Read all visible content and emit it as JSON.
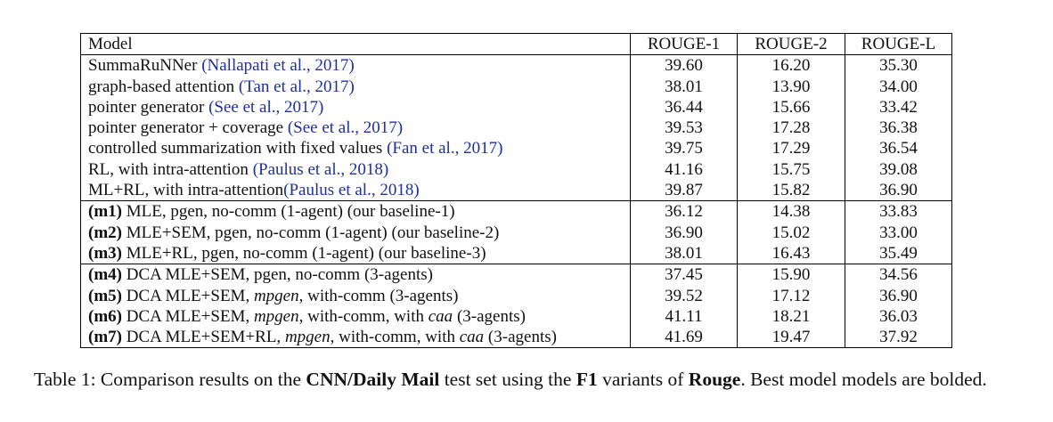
{
  "table": {
    "headers": [
      "Model",
      "ROUGE-1",
      "ROUGE-2",
      "ROUGE-L"
    ],
    "groups": [
      [
        {
          "segments": [
            {
              "text": "SummaRuNNer "
            },
            {
              "text": "(Nallapati et al., 2017)",
              "cite": true
            }
          ],
          "values": [
            "39.60",
            "16.20",
            "35.30"
          ],
          "bold": []
        },
        {
          "segments": [
            {
              "text": "graph-based attention "
            },
            {
              "text": "(Tan et al., 2017)",
              "cite": true
            }
          ],
          "values": [
            "38.01",
            "13.90",
            "34.00"
          ],
          "bold": []
        },
        {
          "segments": [
            {
              "text": "pointer generator "
            },
            {
              "text": "(See et al., 2017)",
              "cite": true
            }
          ],
          "values": [
            "36.44",
            "15.66",
            "33.42"
          ],
          "bold": []
        },
        {
          "segments": [
            {
              "text": "pointer generator + coverage "
            },
            {
              "text": "(See et al., 2017)",
              "cite": true
            }
          ],
          "values": [
            "39.53",
            "17.28",
            "36.38"
          ],
          "bold": []
        },
        {
          "segments": [
            {
              "text": "controlled summarization with fixed values "
            },
            {
              "text": "(Fan et al., 2017)",
              "cite": true
            }
          ],
          "values": [
            "39.75",
            "17.29",
            "36.54"
          ],
          "bold": []
        },
        {
          "segments": [
            {
              "text": "RL, with intra-attention "
            },
            {
              "text": "(Paulus et al., 2018)",
              "cite": true
            }
          ],
          "values": [
            "41.16",
            "15.75",
            "39.08"
          ],
          "bold": [
            2
          ]
        },
        {
          "segments": [
            {
              "text": "ML+RL, with intra-attention"
            },
            {
              "text": "(Paulus et al., 2018)",
              "cite": true
            }
          ],
          "values": [
            "39.87",
            "15.82",
            "36.90"
          ],
          "bold": []
        }
      ],
      [
        {
          "segments": [
            {
              "text": "(m1)",
              "bold": true
            },
            {
              "text": " MLE, pgen, no-comm (1-agent) (our baseline-1)"
            }
          ],
          "values": [
            "36.12",
            "14.38",
            "33.83"
          ],
          "bold": []
        },
        {
          "segments": [
            {
              "text": "(m2)",
              "bold": true
            },
            {
              "text": " MLE+SEM, pgen, no-comm (1-agent) (our baseline-2)"
            }
          ],
          "values": [
            "36.90",
            "15.02",
            "33.00"
          ],
          "bold": []
        },
        {
          "segments": [
            {
              "text": "(m3)",
              "bold": true
            },
            {
              "text": " MLE+RL, pgen, no-comm (1-agent) (our baseline-3)"
            }
          ],
          "values": [
            "38.01",
            "16.43",
            "35.49"
          ],
          "bold": []
        }
      ],
      [
        {
          "segments": [
            {
              "text": "(m4)",
              "bold": true
            },
            {
              "text": " DCA MLE+SEM, pgen, no-comm (3-agents)"
            }
          ],
          "values": [
            "37.45",
            "15.90",
            "34.56"
          ],
          "bold": []
        },
        {
          "segments": [
            {
              "text": "(m5)",
              "bold": true
            },
            {
              "text": " DCA MLE+SEM, "
            },
            {
              "text": "mpgen",
              "italic": true
            },
            {
              "text": ", with-comm (3-agents)"
            }
          ],
          "values": [
            "39.52",
            "17.12",
            "36.90"
          ],
          "bold": []
        },
        {
          "segments": [
            {
              "text": "(m6)",
              "bold": true
            },
            {
              "text": " DCA MLE+SEM, "
            },
            {
              "text": "mpgen",
              "italic": true
            },
            {
              "text": ", with-comm, with "
            },
            {
              "text": "caa",
              "italic": true
            },
            {
              "text": " (3-agents)"
            }
          ],
          "values": [
            "41.11",
            "18.21",
            "36.03"
          ],
          "bold": [
            1
          ]
        },
        {
          "segments": [
            {
              "text": "(m7)",
              "bold": true
            },
            {
              "text": " DCA MLE+SEM+RL, "
            },
            {
              "text": "mpgen",
              "italic": true
            },
            {
              "text": ", with-comm, with "
            },
            {
              "text": "caa",
              "italic": true
            },
            {
              "text": " (3-agents)"
            }
          ],
          "values": [
            "41.69",
            "19.47",
            "37.92"
          ],
          "bold": [
            0,
            1
          ]
        }
      ]
    ]
  },
  "caption": {
    "segments": [
      {
        "text": "Table 1: Comparison results on the "
      },
      {
        "text": "CNN/Daily Mail",
        "bold": true
      },
      {
        "text": " test set using the "
      },
      {
        "text": "F1",
        "bold": true
      },
      {
        "text": " variants of "
      },
      {
        "text": "Rouge",
        "bold": true
      },
      {
        "text": ". Best model models are bolded."
      }
    ]
  }
}
